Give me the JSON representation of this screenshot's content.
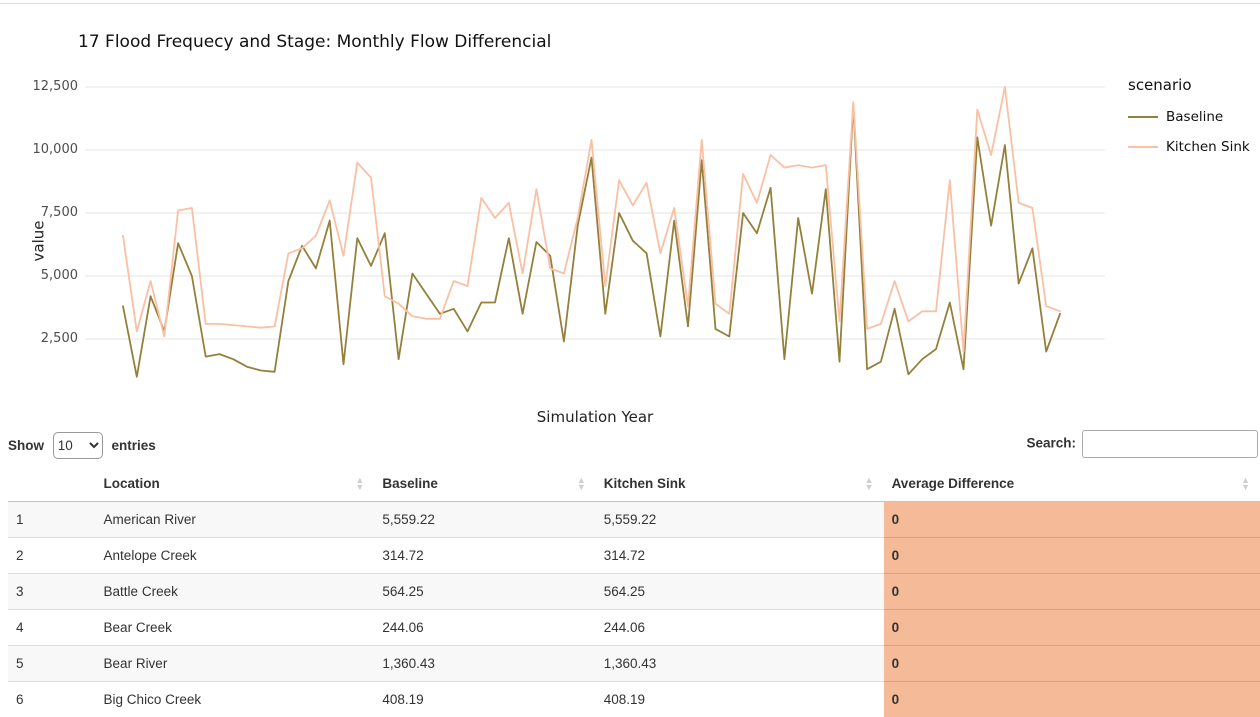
{
  "chart_data": {
    "type": "line",
    "title": "17 Flood Frequecy and Stage: Monthly Flow Differencial",
    "xlabel": "Simulation Year",
    "ylabel": "value",
    "x_tick_labels_shown": false,
    "yticks": [
      2500,
      5000,
      7500,
      10000,
      12500
    ],
    "ytick_labels": [
      "2,500",
      "5,000",
      "7,500",
      "10,000",
      "12,500"
    ],
    "ylim": [
      500,
      12800
    ],
    "grid": "horizontal",
    "legend_title": "scenario",
    "legend_position": "right",
    "series": [
      {
        "name": "Baseline",
        "color": "#94803b",
        "values": [
          3800,
          1000,
          4200,
          2800,
          6300,
          5000,
          1800,
          1900,
          1700,
          1400,
          1250,
          1200,
          4800,
          6200,
          5300,
          7200,
          1500,
          6500,
          5400,
          6700,
          1700,
          5100,
          4300,
          3500,
          3700,
          2800,
          3950,
          3950,
          6500,
          3500,
          6350,
          5800,
          2400,
          7000,
          9700,
          3500,
          7500,
          6400,
          5900,
          2600,
          7200,
          3000,
          9600,
          2900,
          2600,
          7500,
          6700,
          8500,
          1700,
          7300,
          4300,
          8450,
          1600,
          11800,
          1300,
          1600,
          3700,
          1100,
          1700,
          2100,
          3950,
          1300,
          10500,
          7000,
          10200,
          4700,
          6100,
          2000,
          3500
        ]
      },
      {
        "name": "Kitchen Sink",
        "color": "#f9c0a4",
        "values": [
          6600,
          2800,
          4800,
          2600,
          7600,
          7700,
          3100,
          3100,
          3050,
          3000,
          2950,
          3000,
          5900,
          6100,
          6600,
          8000,
          5800,
          9500,
          8900,
          4200,
          3900,
          3400,
          3300,
          3300,
          4800,
          4600,
          8100,
          7300,
          7900,
          5100,
          8450,
          5300,
          5100,
          7300,
          10400,
          4600,
          8800,
          7800,
          8700,
          5900,
          7700,
          3800,
          10400,
          3900,
          3500,
          9050,
          7900,
          9800,
          9300,
          9400,
          9300,
          9400,
          3200,
          11900,
          2900,
          3100,
          4800,
          3200,
          3600,
          3600,
          8800,
          2000,
          11600,
          9800,
          12500,
          7900,
          7700,
          3800,
          3600
        ]
      }
    ]
  },
  "table": {
    "controls": {
      "show_label": "Show",
      "page_length": "10",
      "entries_label": "entries",
      "search_label": "Search:",
      "search_value": "",
      "search_placeholder": ""
    },
    "columns": [
      {
        "label": ""
      },
      {
        "label": "Location"
      },
      {
        "label": "Baseline"
      },
      {
        "label": "Kitchen Sink"
      },
      {
        "label": "Average Difference"
      }
    ],
    "rows": [
      {
        "index": "1",
        "location": "American River",
        "baseline": "5,559.22",
        "kitchen_sink": "5,559.22",
        "average_difference": "0"
      },
      {
        "index": "2",
        "location": "Antelope Creek",
        "baseline": "314.72",
        "kitchen_sink": "314.72",
        "average_difference": "0"
      },
      {
        "index": "3",
        "location": "Battle Creek",
        "baseline": "564.25",
        "kitchen_sink": "564.25",
        "average_difference": "0"
      },
      {
        "index": "4",
        "location": "Bear Creek",
        "baseline": "244.06",
        "kitchen_sink": "244.06",
        "average_difference": "0"
      },
      {
        "index": "5",
        "location": "Bear River",
        "baseline": "1,360.43",
        "kitchen_sink": "1,360.43",
        "average_difference": "0"
      },
      {
        "index": "6",
        "location": "Big Chico Creek",
        "baseline": "408.19",
        "kitchen_sink": "408.19",
        "average_difference": "0"
      }
    ],
    "highlight_color": "#f5bb99"
  }
}
